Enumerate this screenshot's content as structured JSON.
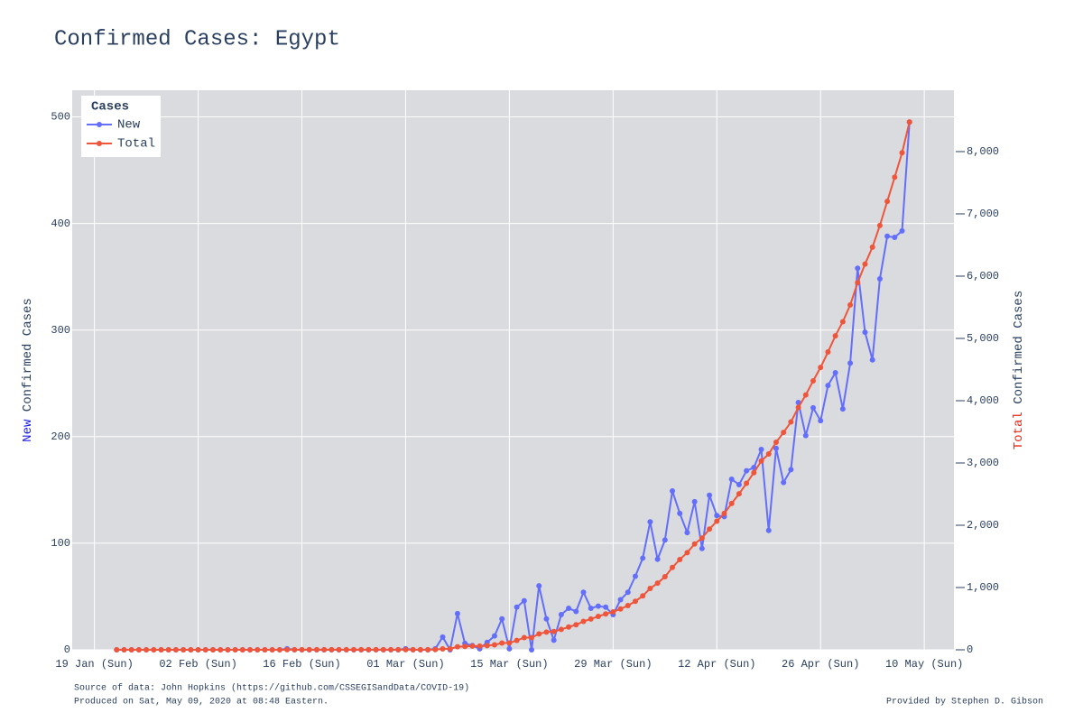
{
  "chart_data": {
    "type": "line",
    "title": "Confirmed Cases: Egypt",
    "ylabel": [
      "New",
      "Confirmed Cases"
    ],
    "y2label": [
      "Total",
      "Confirmed Cases"
    ],
    "legend_title": "Cases",
    "legend": "top-left",
    "grid": true,
    "x": [
      "01-22",
      "01-23",
      "01-24",
      "01-25",
      "01-26",
      "01-27",
      "01-28",
      "01-29",
      "01-30",
      "01-31",
      "02-01",
      "02-02",
      "02-03",
      "02-04",
      "02-05",
      "02-06",
      "02-07",
      "02-08",
      "02-09",
      "02-10",
      "02-11",
      "02-12",
      "02-13",
      "02-14",
      "02-15",
      "02-16",
      "02-17",
      "02-18",
      "02-19",
      "02-20",
      "02-21",
      "02-22",
      "02-23",
      "02-24",
      "02-25",
      "02-26",
      "02-27",
      "02-28",
      "02-29",
      "03-01",
      "03-02",
      "03-03",
      "03-04",
      "03-05",
      "03-06",
      "03-07",
      "03-08",
      "03-09",
      "03-10",
      "03-11",
      "03-12",
      "03-13",
      "03-14",
      "03-15",
      "03-16",
      "03-17",
      "03-18",
      "03-19",
      "03-20",
      "03-21",
      "03-22",
      "03-23",
      "03-24",
      "03-25",
      "03-26",
      "03-27",
      "03-28",
      "03-29",
      "03-30",
      "03-31",
      "04-01",
      "04-02",
      "04-03",
      "04-04",
      "04-05",
      "04-06",
      "04-07",
      "04-08",
      "04-09",
      "04-10",
      "04-11",
      "04-12",
      "04-13",
      "04-14",
      "04-15",
      "04-16",
      "04-17",
      "04-18",
      "04-19",
      "04-20",
      "04-21",
      "04-22",
      "04-23",
      "04-24",
      "04-25",
      "04-26",
      "04-27",
      "04-28",
      "04-29",
      "04-30",
      "05-01",
      "05-02",
      "05-03",
      "05-04",
      "05-05",
      "05-06",
      "05-07",
      "05-08"
    ],
    "xlim": [
      "01-16",
      "05-14"
    ],
    "xticks": [
      {
        "value": "01-19",
        "label": "19 Jan (Sun)"
      },
      {
        "value": "02-02",
        "label": "02 Feb (Sun)"
      },
      {
        "value": "02-16",
        "label": "16 Feb (Sun)"
      },
      {
        "value": "03-01",
        "label": "01 Mar (Sun)"
      },
      {
        "value": "03-15",
        "label": "15 Mar (Sun)"
      },
      {
        "value": "03-29",
        "label": "29 Mar (Sun)"
      },
      {
        "value": "04-12",
        "label": "12 Apr (Sun)"
      },
      {
        "value": "04-26",
        "label": "26 Apr (Sun)"
      },
      {
        "value": "05-10",
        "label": "10 May (Sun)"
      }
    ],
    "ylim": [
      0,
      525
    ],
    "yticks": [
      0,
      100,
      200,
      300,
      400,
      500
    ],
    "y2lim": [
      0,
      8985
    ],
    "y2ticks": [
      0,
      {
        "value": 1000,
        "label": "1,000"
      },
      {
        "value": 2000,
        "label": "2,000"
      },
      {
        "value": 3000,
        "label": "3,000"
      },
      {
        "value": 4000,
        "label": "4,000"
      },
      {
        "value": 5000,
        "label": "5,000"
      },
      {
        "value": 6000,
        "label": "6,000"
      },
      {
        "value": 7000,
        "label": "7,000"
      },
      {
        "value": 8000,
        "label": "8,000"
      }
    ],
    "series": [
      {
        "name": "New",
        "color": "#636efa",
        "values": [
          0,
          0,
          0,
          0,
          0,
          0,
          0,
          0,
          0,
          0,
          0,
          0,
          0,
          0,
          0,
          0,
          0,
          0,
          0,
          0,
          0,
          0,
          0,
          1,
          0,
          0,
          0,
          0,
          0,
          0,
          0,
          0,
          0,
          0,
          0,
          0,
          0,
          0,
          0,
          1,
          0,
          0,
          0,
          1,
          12,
          0,
          34,
          6,
          4,
          1,
          7,
          13,
          29,
          1,
          40,
          46,
          0,
          60,
          29,
          9,
          33,
          39,
          36,
          54,
          39,
          41,
          40,
          33,
          47,
          54,
          69,
          86,
          120,
          85,
          103,
          149,
          128,
          110,
          139,
          95,
          145,
          126,
          125,
          160,
          155,
          168,
          171,
          188,
          112,
          189,
          157,
          169,
          232,
          201,
          227,
          215,
          248,
          260,
          226,
          269,
          358,
          298,
          272,
          348,
          388,
          387,
          393,
          495
        ]
      },
      {
        "name": "Total",
        "color": "#ef553b",
        "axis": "y2",
        "values": [
          0,
          0,
          0,
          0,
          0,
          0,
          0,
          0,
          0,
          0,
          0,
          0,
          0,
          0,
          0,
          0,
          0,
          0,
          0,
          0,
          0,
          0,
          0,
          1,
          1,
          1,
          1,
          1,
          1,
          1,
          1,
          1,
          1,
          1,
          1,
          1,
          1,
          1,
          1,
          2,
          2,
          2,
          2,
          3,
          15,
          15,
          49,
          55,
          59,
          60,
          67,
          80,
          109,
          110,
          150,
          196,
          196,
          256,
          285,
          294,
          327,
          366,
          402,
          456,
          495,
          536,
          576,
          609,
          656,
          710,
          779,
          865,
          985,
          1070,
          1173,
          1322,
          1450,
          1560,
          1699,
          1794,
          1939,
          2065,
          2190,
          2350,
          2505,
          2673,
          2844,
          3032,
          3144,
          3333,
          3490,
          3659,
          3891,
          4092,
          4319,
          4534,
          4782,
          5042,
          5268,
          5537,
          5895,
          6193,
          6465,
          6813,
          7201,
          7588,
          7981,
          8476
        ]
      }
    ],
    "notes": [
      "Source of data: John Hopkins (https://github.com/CSSEGISandData/COVID-19)",
      "Produced on Sat, May 09, 2020 at 08:48 Eastern."
    ],
    "credit": "Provided by Stephen D. Gibson"
  }
}
